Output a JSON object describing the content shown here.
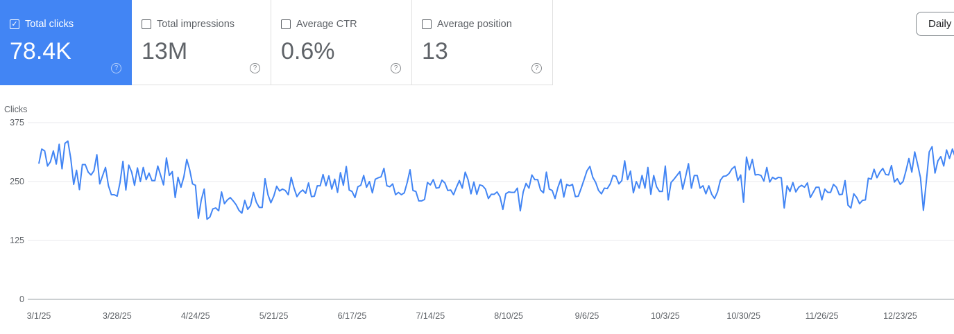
{
  "metrics": [
    {
      "label": "Total clicks",
      "value": "78.4K",
      "checked": true
    },
    {
      "label": "Total impressions",
      "value": "13M",
      "checked": false
    },
    {
      "label": "Average CTR",
      "value": "0.6%",
      "checked": false
    },
    {
      "label": "Average position",
      "value": "13",
      "checked": false
    }
  ],
  "help_glyph": "?",
  "check_glyph": "✓",
  "granularity_button": "Daily",
  "colors": {
    "accent": "#4285f4",
    "line": "#4285f4",
    "grid": "#e8eaed"
  },
  "chart_data": {
    "type": "line",
    "ylabel": "Clicks",
    "ylim": [
      0,
      375
    ],
    "y_ticks": [
      "375",
      "250",
      "125",
      "0"
    ],
    "y_tick_values": [
      375,
      250,
      125,
      0
    ],
    "x_ticks": [
      "3/1/25",
      "3/28/25",
      "4/24/25",
      "5/21/25",
      "6/17/25",
      "7/14/25",
      "8/10/25",
      "9/6/25",
      "10/3/25",
      "10/30/25",
      "11/26/25",
      "12/23/25"
    ],
    "x_tick_interval_days": 27,
    "grid": true,
    "series": [
      {
        "values": [
          288,
          319,
          315,
          283,
          292,
          315,
          287,
          329,
          277,
          331,
          336,
          299,
          244,
          274,
          233,
          286,
          286,
          270,
          264,
          273,
          307,
          245,
          263,
          280,
          241,
          222,
          222,
          219,
          248,
          293,
          232,
          285,
          270,
          242,
          279,
          250,
          280,
          254,
          268,
          252,
          252,
          283,
          263,
          243,
          300,
          263,
          271,
          216,
          259,
          238,
          260,
          297,
          275,
          245,
          242,
          172,
          211,
          234,
          170,
          175,
          192,
          194,
          188,
          228,
          203,
          211,
          216,
          209,
          201,
          189,
          183,
          210,
          191,
          199,
          227,
          206,
          195,
          195,
          256,
          222,
          205,
          219,
          240,
          230,
          234,
          231,
          222,
          259,
          236,
          218,
          227,
          232,
          225,
          247,
          218,
          219,
          241,
          241,
          265,
          241,
          262,
          234,
          255,
          227,
          269,
          242,
          282,
          232,
          229,
          216,
          239,
          242,
          263,
          238,
          250,
          226,
          255,
          258,
          260,
          278,
          241,
          239,
          245,
          222,
          227,
          222,
          226,
          248,
          275,
          231,
          229,
          209,
          209,
          212,
          248,
          243,
          254,
          236,
          237,
          253,
          247,
          231,
          232,
          222,
          238,
          252,
          236,
          270,
          254,
          224,
          249,
          223,
          243,
          241,
          234,
          214,
          223,
          223,
          228,
          218,
          191,
          224,
          228,
          227,
          227,
          236,
          188,
          228,
          246,
          236,
          264,
          254,
          254,
          232,
          226,
          270,
          234,
          231,
          214,
          238,
          255,
          217,
          244,
          241,
          244,
          218,
          219,
          236,
          254,
          273,
          282,
          259,
          248,
          231,
          224,
          236,
          235,
          245,
          263,
          261,
          245,
          252,
          294,
          254,
          272,
          226,
          250,
          236,
          263,
          236,
          280,
          223,
          263,
          239,
          229,
          229,
          283,
          211,
          248,
          255,
          263,
          271,
          234,
          260,
          288,
          236,
          263,
          263,
          236,
          241,
          224,
          241,
          223,
          214,
          228,
          253,
          261,
          262,
          267,
          277,
          282,
          252,
          264,
          206,
          302,
          275,
          297,
          264,
          265,
          263,
          251,
          280,
          249,
          259,
          255,
          259,
          258,
          194,
          241,
          229,
          248,
          228,
          238,
          242,
          238,
          247,
          216,
          227,
          238,
          238,
          211,
          234,
          227,
          227,
          244,
          238,
          222,
          223,
          252,
          200,
          194,
          224,
          216,
          203,
          210,
          211,
          257,
          255,
          276,
          258,
          270,
          278,
          265,
          264,
          284,
          249,
          256,
          244,
          250,
          273,
          299,
          270,
          313,
          287,
          258,
          189,
          250,
          313,
          324,
          268,
          294,
          303,
          283,
          317,
          299,
          319,
          301
        ]
      }
    ]
  }
}
